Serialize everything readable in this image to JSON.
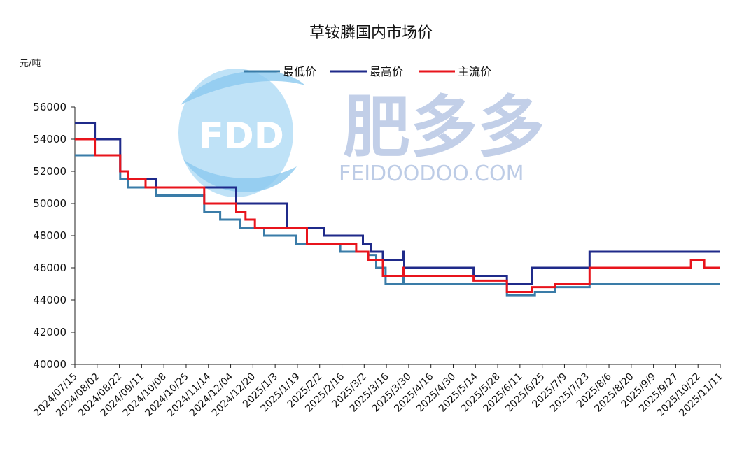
{
  "watermark": {
    "logo_text": "FDD",
    "brand_cn": "肥多多",
    "brand_url": "FEIDOODOO.COM",
    "color": "#6f8fc9",
    "logo_color": "#7fc2ec"
  },
  "chart_data": {
    "type": "line",
    "title": "草铵膦国内市场价",
    "ylabel": "元/吨",
    "xlabel": "",
    "ylim": [
      40000,
      56000
    ],
    "yticks": [
      40000,
      42000,
      44000,
      46000,
      48000,
      50000,
      52000,
      54000,
      56000
    ],
    "grid": false,
    "legend_position": "top-center",
    "x_start": "2024/07/15",
    "x_end": "2025/11/11",
    "x_tick_labels": [
      "2024/07/15",
      "2024/08/02",
      "2024/08/22",
      "2024/09/11",
      "2024/10/08",
      "2024/10/25",
      "2024/11/14",
      "2024/12/04",
      "2024/12/20",
      "2025/1/3",
      "2025/1/19",
      "2025/2/2",
      "2025/2/16",
      "2025/3/2",
      "2025/3/16",
      "2025/3/30",
      "2025/4/16",
      "2025/4/30",
      "2025/5/14",
      "2025/5/28",
      "2025/6/11",
      "2025/6/25",
      "2025/7/9",
      "2025/7/23",
      "2025/8/6",
      "2025/8/20",
      "2025/9/9",
      "2025/9/27",
      "2025/10/22",
      "2025/11/11"
    ],
    "series": [
      {
        "name": "最低价",
        "color": "#3a7ca8",
        "points": [
          [
            "2024/07/15",
            53000
          ],
          [
            "2024/08/18",
            53000
          ],
          [
            "2024/08/18",
            51500
          ],
          [
            "2024/08/24",
            51500
          ],
          [
            "2024/08/24",
            51000
          ],
          [
            "2024/09/14",
            51000
          ],
          [
            "2024/09/14",
            50500
          ],
          [
            "2024/10/20",
            50500
          ],
          [
            "2024/10/20",
            49500
          ],
          [
            "2024/11/01",
            49500
          ],
          [
            "2024/11/01",
            49000
          ],
          [
            "2024/11/16",
            49000
          ],
          [
            "2024/11/16",
            48500
          ],
          [
            "2024/12/04",
            48500
          ],
          [
            "2024/12/04",
            48000
          ],
          [
            "2024/12/28",
            48000
          ],
          [
            "2024/12/28",
            47500
          ],
          [
            "2025/1/30",
            47500
          ],
          [
            "2025/1/30",
            47000
          ],
          [
            "2025/2/20",
            47000
          ],
          [
            "2025/2/20",
            46800
          ],
          [
            "2025/2/26",
            46800
          ],
          [
            "2025/2/26",
            46000
          ],
          [
            "2025/3/5",
            46000
          ],
          [
            "2025/3/5",
            45000
          ],
          [
            "2025/3/18",
            45000
          ],
          [
            "2025/3/18",
            45500
          ],
          [
            "2025/3/19",
            45500
          ],
          [
            "2025/3/19",
            45000
          ],
          [
            "2025/6/4",
            45000
          ],
          [
            "2025/6/4",
            44300
          ],
          [
            "2025/6/25",
            44300
          ],
          [
            "2025/6/25",
            44500
          ],
          [
            "2025/7/10",
            44500
          ],
          [
            "2025/7/10",
            44800
          ],
          [
            "2025/8/5",
            44800
          ],
          [
            "2025/8/5",
            45000
          ],
          [
            "2025/11/11",
            45000
          ]
        ]
      },
      {
        "name": "最高价",
        "color": "#1f2a8a",
        "points": [
          [
            "2024/07/15",
            55000
          ],
          [
            "2024/07/30",
            55000
          ],
          [
            "2024/07/30",
            54000
          ],
          [
            "2024/08/18",
            54000
          ],
          [
            "2024/08/18",
            52000
          ],
          [
            "2024/08/24",
            52000
          ],
          [
            "2024/08/24",
            51500
          ],
          [
            "2024/09/14",
            51500
          ],
          [
            "2024/09/14",
            51000
          ],
          [
            "2024/11/13",
            51000
          ],
          [
            "2024/11/13",
            50000
          ],
          [
            "2024/12/21",
            50000
          ],
          [
            "2024/12/21",
            48500
          ],
          [
            "2025/1/18",
            48500
          ],
          [
            "2025/1/18",
            48000
          ],
          [
            "2025/2/16",
            48000
          ],
          [
            "2025/2/16",
            47500
          ],
          [
            "2025/2/22",
            47500
          ],
          [
            "2025/2/22",
            47000
          ],
          [
            "2025/3/3",
            47000
          ],
          [
            "2025/3/3",
            46500
          ],
          [
            "2025/3/18",
            46500
          ],
          [
            "2025/3/18",
            47000
          ],
          [
            "2025/3/19",
            47000
          ],
          [
            "2025/3/19",
            46000
          ],
          [
            "2025/5/10",
            46000
          ],
          [
            "2025/5/10",
            45500
          ],
          [
            "2025/6/4",
            45500
          ],
          [
            "2025/6/4",
            45000
          ],
          [
            "2025/6/23",
            45000
          ],
          [
            "2025/6/23",
            46000
          ],
          [
            "2025/8/5",
            46000
          ],
          [
            "2025/8/5",
            47000
          ],
          [
            "2025/11/11",
            47000
          ]
        ]
      },
      {
        "name": "主流价",
        "color": "#e8141c",
        "points": [
          [
            "2024/07/15",
            54000
          ],
          [
            "2024/07/30",
            54000
          ],
          [
            "2024/07/30",
            53000
          ],
          [
            "2024/08/18",
            53000
          ],
          [
            "2024/08/18",
            52000
          ],
          [
            "2024/08/24",
            52000
          ],
          [
            "2024/08/24",
            51500
          ],
          [
            "2024/09/06",
            51500
          ],
          [
            "2024/09/06",
            51000
          ],
          [
            "2024/10/20",
            51000
          ],
          [
            "2024/10/20",
            50000
          ],
          [
            "2024/11/13",
            50000
          ],
          [
            "2024/11/13",
            49500
          ],
          [
            "2024/11/20",
            49500
          ],
          [
            "2024/11/20",
            49000
          ],
          [
            "2024/11/27",
            49000
          ],
          [
            "2024/11/27",
            48500
          ],
          [
            "2025/1/5",
            48500
          ],
          [
            "2025/1/5",
            47500
          ],
          [
            "2025/2/11",
            47500
          ],
          [
            "2025/2/11",
            47000
          ],
          [
            "2025/2/20",
            47000
          ],
          [
            "2025/2/20",
            46500
          ],
          [
            "2025/3/3",
            46500
          ],
          [
            "2025/3/3",
            45500
          ],
          [
            "2025/3/18",
            45500
          ],
          [
            "2025/3/18",
            46000
          ],
          [
            "2025/3/19",
            46000
          ],
          [
            "2025/3/19",
            45500
          ],
          [
            "2025/5/10",
            45500
          ],
          [
            "2025/5/10",
            45200
          ],
          [
            "2025/6/4",
            45200
          ],
          [
            "2025/6/4",
            44500
          ],
          [
            "2025/6/23",
            44500
          ],
          [
            "2025/6/23",
            44800
          ],
          [
            "2025/7/10",
            44800
          ],
          [
            "2025/7/10",
            45000
          ],
          [
            "2025/8/5",
            45000
          ],
          [
            "2025/8/5",
            46000
          ],
          [
            "2025/10/20",
            46000
          ],
          [
            "2025/10/20",
            46500
          ],
          [
            "2025/10/30",
            46500
          ],
          [
            "2025/10/30",
            46000
          ],
          [
            "2025/11/11",
            46000
          ]
        ]
      }
    ]
  }
}
